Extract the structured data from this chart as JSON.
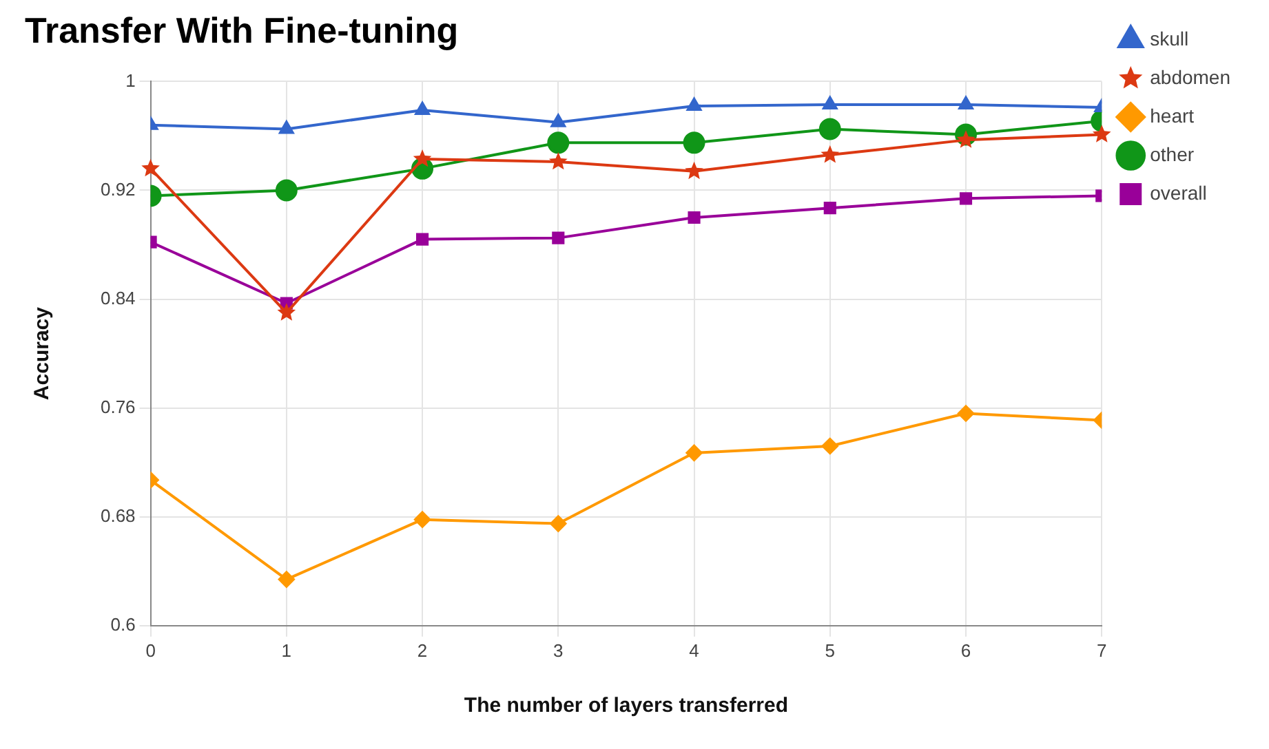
{
  "chart_data": {
    "type": "line",
    "title": "Transfer With Fine-tuning",
    "xlabel": "The number of layers transferred",
    "ylabel": "Accuracy",
    "x": [
      0,
      1,
      2,
      3,
      4,
      5,
      6,
      7
    ],
    "xlim": [
      0,
      7
    ],
    "xticks": [
      0,
      1,
      2,
      3,
      4,
      5,
      6,
      7
    ],
    "ylim": [
      0.6,
      1
    ],
    "yticks": [
      0.6,
      0.68,
      0.76,
      0.84,
      0.92,
      1
    ],
    "grid": true,
    "legend": "right",
    "series": [
      {
        "name": "skull",
        "color": "#3366cc",
        "marker": "triangle",
        "values": [
          0.968,
          0.965,
          0.979,
          0.97,
          0.982,
          0.983,
          0.983,
          0.981
        ]
      },
      {
        "name": "abdomen",
        "color": "#dc3912",
        "marker": "star",
        "values": [
          0.936,
          0.83,
          0.943,
          0.941,
          0.934,
          0.946,
          0.957,
          0.961
        ]
      },
      {
        "name": "heart",
        "color": "#ff9900",
        "marker": "diamond",
        "values": [
          0.707,
          0.634,
          0.678,
          0.675,
          0.727,
          0.732,
          0.756,
          0.751
        ]
      },
      {
        "name": "other",
        "color": "#109618",
        "marker": "circle",
        "values": [
          0.916,
          0.92,
          0.936,
          0.955,
          0.955,
          0.965,
          0.961,
          0.971
        ]
      },
      {
        "name": "overall",
        "color": "#990099",
        "marker": "square",
        "values": [
          0.882,
          0.837,
          0.884,
          0.885,
          0.9,
          0.907,
          0.914,
          0.916
        ]
      }
    ]
  }
}
